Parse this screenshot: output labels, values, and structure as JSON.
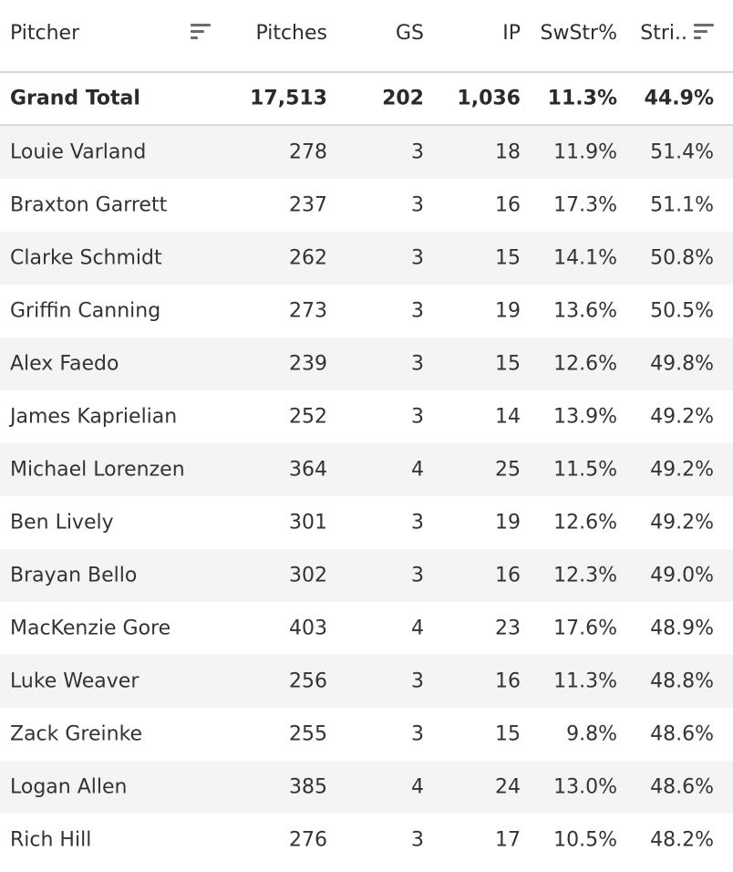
{
  "chart_data": {
    "type": "table",
    "columns": [
      "Pitcher",
      "Pitches",
      "GS",
      "IP",
      "SwStr%",
      "Stri.."
    ],
    "total": {
      "label": "Grand Total",
      "values": [
        "17,513",
        "202",
        "1,036",
        "11.3%",
        "44.9%"
      ]
    },
    "rows": [
      {
        "name": "Louie Varland",
        "values": [
          "278",
          "3",
          "18",
          "11.9%",
          "51.4%"
        ]
      },
      {
        "name": "Braxton Garrett",
        "values": [
          "237",
          "3",
          "16",
          "17.3%",
          "51.1%"
        ]
      },
      {
        "name": "Clarke Schmidt",
        "values": [
          "262",
          "3",
          "15",
          "14.1%",
          "50.8%"
        ]
      },
      {
        "name": "Griffin Canning",
        "values": [
          "273",
          "3",
          "19",
          "13.6%",
          "50.5%"
        ]
      },
      {
        "name": "Alex Faedo",
        "values": [
          "239",
          "3",
          "15",
          "12.6%",
          "49.8%"
        ]
      },
      {
        "name": "James Kaprielian",
        "values": [
          "252",
          "3",
          "14",
          "13.9%",
          "49.2%"
        ]
      },
      {
        "name": "Michael Lorenzen",
        "values": [
          "364",
          "4",
          "25",
          "11.5%",
          "49.2%"
        ]
      },
      {
        "name": "Ben Lively",
        "values": [
          "301",
          "3",
          "19",
          "12.6%",
          "49.2%"
        ]
      },
      {
        "name": "Brayan Bello",
        "values": [
          "302",
          "3",
          "16",
          "12.3%",
          "49.0%"
        ]
      },
      {
        "name": "MacKenzie Gore",
        "values": [
          "403",
          "4",
          "23",
          "17.6%",
          "48.9%"
        ]
      },
      {
        "name": "Luke Weaver",
        "values": [
          "256",
          "3",
          "16",
          "11.3%",
          "48.8%"
        ]
      },
      {
        "name": "Zack Greinke",
        "values": [
          "255",
          "3",
          "15",
          "9.8%",
          "48.6%"
        ]
      },
      {
        "name": "Logan Allen",
        "values": [
          "385",
          "4",
          "24",
          "13.0%",
          "48.6%"
        ]
      },
      {
        "name": "Rich Hill",
        "values": [
          "276",
          "3",
          "17",
          "10.5%",
          "48.2%"
        ]
      }
    ]
  },
  "icons": {
    "pitcher_sort": "sort-descending-icon",
    "strike_sort": "sort-descending-icon"
  },
  "colors": {
    "header_text": "#2e2e2e",
    "row_alt": "#f4f4f4",
    "divider": "#d6d6d6",
    "icon": "#6b6b6b"
  }
}
